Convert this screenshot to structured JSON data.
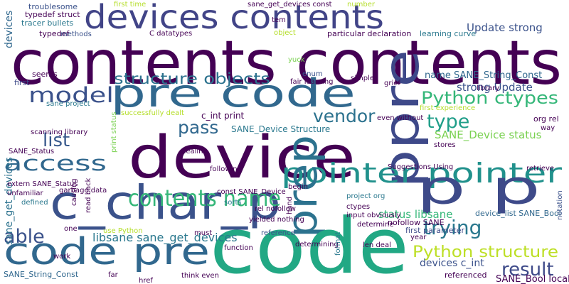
{
  "words": [
    "contents contents",
    "devices contents",
    "pre code",
    "ppre",
    "device",
    "pointer pointer",
    "p p",
    "prep",
    "c_char_p",
    "code pre",
    "code",
    "contents name",
    "model",
    "access",
    "list",
    "able",
    "pass",
    "vendor",
    "type",
    "trying",
    "result",
    "Python ctypes",
    "Python structure",
    "structure objects",
    "strong Update",
    "Update strong",
    "name SANE_String_Const",
    "SANE_Device status",
    "status libsane",
    "libsane sane_get_devices",
    "sane_get_devices",
    "devices",
    "SANE_Device Structure",
    "c_int print",
    "devices c_int",
    "nofollow SANE",
    "first parameter",
    "device_list SANE_Bool",
    "SANE_Bool local_only",
    "troublesome",
    "typedef struct",
    "tracer bullets",
    "typedef",
    "methods",
    "seems",
    "first",
    "extern SANE_Status",
    "SANE_Status",
    "unfamiliar",
    "defined",
    "sane_get_devices const",
    "first time",
    "C datatypes",
    "particular declaration",
    "learning curve",
    "object",
    "number",
    "yuck",
    "enum",
    "simple",
    "fair learning",
    "grief",
    "library",
    "org rel",
    "way",
    "retrieve",
    "notation",
    "Suggestions Using",
    "project org",
    "ctypes",
    "input obviously",
    "determine",
    "determining",
    "reference",
    "yielded nothing",
    "rel nofollow",
    "const SANE_Device",
    "sorts",
    "following",
    "garbage data",
    "hand",
    "use Python",
    "one",
    "must",
    "function",
    "year",
    "len deal",
    "format",
    "far",
    "href",
    "think even",
    "work",
    "SANE_String_Const",
    "referenced",
    "dealing",
    "scanning library",
    "sane project",
    "successfully dealt",
    "even without",
    "first experience",
    "causing",
    "read back",
    "print status",
    "begin",
    "stores",
    "tem"
  ]
}
